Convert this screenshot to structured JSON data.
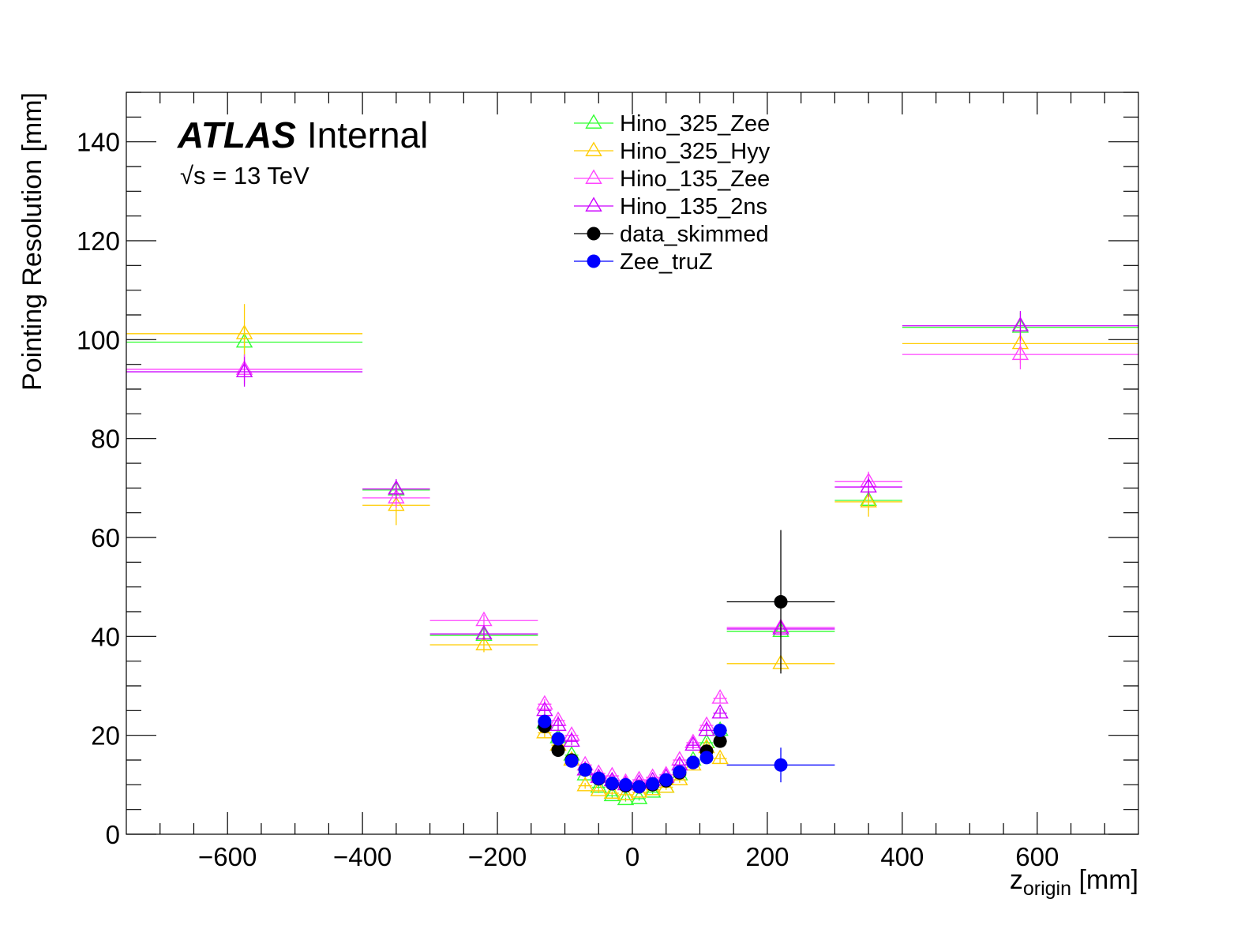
{
  "chart_data": {
    "type": "scatter",
    "xlabel": "z",
    "xlabel_subscript": "origin",
    "xlabel_unit": "[mm]",
    "ylabel": "Pointing Resolution [mm]",
    "xlim": [
      -750,
      750
    ],
    "ylim": [
      0,
      150
    ],
    "x_ticks": [
      "−600",
      "−400",
      "−200",
      "0",
      "200",
      "400",
      "600"
    ],
    "y_ticks": [
      "0",
      "20",
      "40",
      "60",
      "80",
      "100",
      "120",
      "140"
    ],
    "x_tick_values": [
      -600,
      -400,
      -200,
      0,
      200,
      400,
      600
    ],
    "y_tick_values": [
      0,
      20,
      40,
      60,
      80,
      100,
      120,
      140
    ],
    "annotation": {
      "experiment": "ATLAS",
      "status": "Internal",
      "energy": "√s = 13 TeV"
    },
    "legend_position": "top-center",
    "series": [
      {
        "name": "Hino_325_Zee",
        "color": "#33ff33",
        "marker": "open-triangle",
        "points": [
          {
            "x": -575,
            "y": 99.5,
            "xerr": 175,
            "yerr": 3
          },
          {
            "x": -350,
            "y": 69.6,
            "xerr": 50,
            "yerr": 2
          },
          {
            "x": -220,
            "y": 40.2,
            "xerr": 80,
            "yerr": 1.2
          },
          {
            "x": -130,
            "y": 22.5,
            "xerr": 10,
            "yerr": 1
          },
          {
            "x": -110,
            "y": 19.5,
            "xerr": 10,
            "yerr": 1
          },
          {
            "x": -90,
            "y": 16.0,
            "xerr": 10,
            "yerr": 0.8
          },
          {
            "x": -70,
            "y": 12.0,
            "xerr": 10,
            "yerr": 0.6
          },
          {
            "x": -50,
            "y": 9.5,
            "xerr": 10,
            "yerr": 0.5
          },
          {
            "x": -30,
            "y": 7.8,
            "xerr": 10,
            "yerr": 0.4
          },
          {
            "x": -10,
            "y": 7.0,
            "xerr": 10,
            "yerr": 0.4
          },
          {
            "x": 10,
            "y": 7.2,
            "xerr": 10,
            "yerr": 0.4
          },
          {
            "x": 30,
            "y": 8.5,
            "xerr": 10,
            "yerr": 0.4
          },
          {
            "x": 50,
            "y": 9.5,
            "xerr": 10,
            "yerr": 0.5
          },
          {
            "x": 70,
            "y": 12.0,
            "xerr": 10,
            "yerr": 0.6
          },
          {
            "x": 90,
            "y": 15.0,
            "xerr": 10,
            "yerr": 0.8
          },
          {
            "x": 110,
            "y": 18.5,
            "xerr": 10,
            "yerr": 1
          },
          {
            "x": 130,
            "y": 21.0,
            "xerr": 10,
            "yerr": 1
          },
          {
            "x": 220,
            "y": 41.0,
            "xerr": 80,
            "yerr": 1.5
          },
          {
            "x": 350,
            "y": 67.5,
            "xerr": 50,
            "yerr": 2
          },
          {
            "x": 575,
            "y": 102.5,
            "xerr": 175,
            "yerr": 3
          }
        ]
      },
      {
        "name": "Hino_325_Hyy",
        "color": "#ffcc00",
        "marker": "open-triangle",
        "points": [
          {
            "x": -575,
            "y": 101.2,
            "xerr": 175,
            "yerr": 6
          },
          {
            "x": -350,
            "y": 66.5,
            "xerr": 50,
            "yerr": 4
          },
          {
            "x": -220,
            "y": 38.3,
            "xerr": 80,
            "yerr": 1.5
          },
          {
            "x": -130,
            "y": 20.5,
            "xerr": 10,
            "yerr": 1
          },
          {
            "x": -110,
            "y": 18.0,
            "xerr": 10,
            "yerr": 1
          },
          {
            "x": -90,
            "y": 15.0,
            "xerr": 10,
            "yerr": 0.8
          },
          {
            "x": -70,
            "y": 9.8,
            "xerr": 10,
            "yerr": 0.6
          },
          {
            "x": -50,
            "y": 8.8,
            "xerr": 10,
            "yerr": 0.5
          },
          {
            "x": -30,
            "y": 8.3,
            "xerr": 10,
            "yerr": 0.4
          },
          {
            "x": -10,
            "y": 8.0,
            "xerr": 10,
            "yerr": 0.4
          },
          {
            "x": 10,
            "y": 8.5,
            "xerr": 10,
            "yerr": 0.4
          },
          {
            "x": 30,
            "y": 9.0,
            "xerr": 10,
            "yerr": 0.4
          },
          {
            "x": 50,
            "y": 9.5,
            "xerr": 10,
            "yerr": 0.5
          },
          {
            "x": 70,
            "y": 11.0,
            "xerr": 10,
            "yerr": 0.6
          },
          {
            "x": 90,
            "y": 14.0,
            "xerr": 10,
            "yerr": 0.8
          },
          {
            "x": 110,
            "y": 17.5,
            "xerr": 10,
            "yerr": 1
          },
          {
            "x": 130,
            "y": 15.3,
            "xerr": 10,
            "yerr": 1
          },
          {
            "x": 220,
            "y": 34.5,
            "xerr": 80,
            "yerr": 1.5
          },
          {
            "x": 350,
            "y": 67.2,
            "xerr": 50,
            "yerr": 3
          },
          {
            "x": 575,
            "y": 99.2,
            "xerr": 175,
            "yerr": 4
          }
        ]
      },
      {
        "name": "Hino_135_Zee",
        "color": "#ff44ff",
        "marker": "open-triangle",
        "points": [
          {
            "x": -575,
            "y": 94.0,
            "xerr": 175,
            "yerr": 3
          },
          {
            "x": -350,
            "y": 68.0,
            "xerr": 50,
            "yerr": 2
          },
          {
            "x": -220,
            "y": 43.2,
            "xerr": 80,
            "yerr": 1.2
          },
          {
            "x": -130,
            "y": 26.3,
            "xerr": 10,
            "yerr": 1
          },
          {
            "x": -110,
            "y": 23.0,
            "xerr": 10,
            "yerr": 1
          },
          {
            "x": -90,
            "y": 20.0,
            "xerr": 10,
            "yerr": 0.8
          },
          {
            "x": -70,
            "y": 14.0,
            "xerr": 10,
            "yerr": 0.6
          },
          {
            "x": -50,
            "y": 12.3,
            "xerr": 10,
            "yerr": 0.5
          },
          {
            "x": -30,
            "y": 11.8,
            "xerr": 10,
            "yerr": 0.4
          },
          {
            "x": -10,
            "y": 10.5,
            "xerr": 10,
            "yerr": 0.4
          },
          {
            "x": 10,
            "y": 11.0,
            "xerr": 10,
            "yerr": 0.4
          },
          {
            "x": 30,
            "y": 11.5,
            "xerr": 10,
            "yerr": 0.4
          },
          {
            "x": 50,
            "y": 12.0,
            "xerr": 10,
            "yerr": 0.5
          },
          {
            "x": 70,
            "y": 15.0,
            "xerr": 10,
            "yerr": 0.6
          },
          {
            "x": 90,
            "y": 18.5,
            "xerr": 10,
            "yerr": 0.8
          },
          {
            "x": 110,
            "y": 22.0,
            "xerr": 10,
            "yerr": 1
          },
          {
            "x": 130,
            "y": 27.5,
            "xerr": 10,
            "yerr": 1
          },
          {
            "x": 220,
            "y": 41.8,
            "xerr": 80,
            "yerr": 1.5
          },
          {
            "x": 350,
            "y": 71.3,
            "xerr": 50,
            "yerr": 2
          },
          {
            "x": 575,
            "y": 97.0,
            "xerr": 175,
            "yerr": 3
          }
        ]
      },
      {
        "name": "Hino_135_2ns",
        "color": "#cc00ff",
        "marker": "open-triangle",
        "points": [
          {
            "x": -575,
            "y": 93.5,
            "xerr": 175,
            "yerr": 3
          },
          {
            "x": -350,
            "y": 69.8,
            "xerr": 50,
            "yerr": 2
          },
          {
            "x": -220,
            "y": 40.5,
            "xerr": 80,
            "yerr": 1.2
          },
          {
            "x": -130,
            "y": 25.0,
            "xerr": 10,
            "yerr": 1
          },
          {
            "x": -110,
            "y": 22.0,
            "xerr": 10,
            "yerr": 1
          },
          {
            "x": -90,
            "y": 18.8,
            "xerr": 10,
            "yerr": 0.8
          },
          {
            "x": -70,
            "y": 13.0,
            "xerr": 10,
            "yerr": 0.6
          },
          {
            "x": -50,
            "y": 11.5,
            "xerr": 10,
            "yerr": 0.5
          },
          {
            "x": -30,
            "y": 10.8,
            "xerr": 10,
            "yerr": 0.4
          },
          {
            "x": -10,
            "y": 10.0,
            "xerr": 10,
            "yerr": 0.4
          },
          {
            "x": 10,
            "y": 10.3,
            "xerr": 10,
            "yerr": 0.4
          },
          {
            "x": 30,
            "y": 10.8,
            "xerr": 10,
            "yerr": 0.4
          },
          {
            "x": 50,
            "y": 11.5,
            "xerr": 10,
            "yerr": 0.5
          },
          {
            "x": 70,
            "y": 14.0,
            "xerr": 10,
            "yerr": 0.6
          },
          {
            "x": 90,
            "y": 18.0,
            "xerr": 10,
            "yerr": 0.8
          },
          {
            "x": 110,
            "y": 21.0,
            "xerr": 10,
            "yerr": 1
          },
          {
            "x": 130,
            "y": 24.5,
            "xerr": 10,
            "yerr": 1
          },
          {
            "x": 220,
            "y": 41.5,
            "xerr": 80,
            "yerr": 1.5
          },
          {
            "x": 350,
            "y": 70.2,
            "xerr": 50,
            "yerr": 2
          },
          {
            "x": 575,
            "y": 102.8,
            "xerr": 175,
            "yerr": 3
          }
        ]
      },
      {
        "name": "data_skimmed",
        "color": "#000000",
        "marker": "filled-circle",
        "points": [
          {
            "x": -130,
            "y": 21.8,
            "xerr": 10,
            "yerr": 0.8
          },
          {
            "x": -110,
            "y": 17.0,
            "xerr": 10,
            "yerr": 0.6
          },
          {
            "x": -90,
            "y": 15.0,
            "xerr": 10,
            "yerr": 0.5
          },
          {
            "x": -70,
            "y": 13.0,
            "xerr": 10,
            "yerr": 0.4
          },
          {
            "x": -50,
            "y": 11.2,
            "xerr": 10,
            "yerr": 0.3
          },
          {
            "x": -30,
            "y": 10.2,
            "xerr": 10,
            "yerr": 0.3
          },
          {
            "x": -10,
            "y": 9.8,
            "xerr": 10,
            "yerr": 0.3
          },
          {
            "x": 10,
            "y": 9.6,
            "xerr": 10,
            "yerr": 0.3
          },
          {
            "x": 30,
            "y": 10.0,
            "xerr": 10,
            "yerr": 0.3
          },
          {
            "x": 50,
            "y": 10.8,
            "xerr": 10,
            "yerr": 0.3
          },
          {
            "x": 70,
            "y": 12.4,
            "xerr": 10,
            "yerr": 0.4
          },
          {
            "x": 90,
            "y": 14.5,
            "xerr": 10,
            "yerr": 0.5
          },
          {
            "x": 110,
            "y": 16.8,
            "xerr": 10,
            "yerr": 0.6
          },
          {
            "x": 130,
            "y": 18.8,
            "xerr": 10,
            "yerr": 0.8
          },
          {
            "x": 220,
            "y": 47.0,
            "xerr": 80,
            "yerr": 14.5
          }
        ]
      },
      {
        "name": "Zee_truZ",
        "color": "#0000ff",
        "marker": "filled-circle",
        "points": [
          {
            "x": -130,
            "y": 22.8,
            "xerr": 10,
            "yerr": 0.8
          },
          {
            "x": -110,
            "y": 19.3,
            "xerr": 10,
            "yerr": 0.6
          },
          {
            "x": -90,
            "y": 14.8,
            "xerr": 10,
            "yerr": 0.5
          },
          {
            "x": -70,
            "y": 13.0,
            "xerr": 10,
            "yerr": 0.4
          },
          {
            "x": -50,
            "y": 11.3,
            "xerr": 10,
            "yerr": 0.3
          },
          {
            "x": -30,
            "y": 10.3,
            "xerr": 10,
            "yerr": 0.3
          },
          {
            "x": -10,
            "y": 10.0,
            "xerr": 10,
            "yerr": 0.3
          },
          {
            "x": 10,
            "y": 9.6,
            "xerr": 10,
            "yerr": 0.3
          },
          {
            "x": 30,
            "y": 10.2,
            "xerr": 10,
            "yerr": 0.3
          },
          {
            "x": 50,
            "y": 11.0,
            "xerr": 10,
            "yerr": 0.3
          },
          {
            "x": 70,
            "y": 12.6,
            "xerr": 10,
            "yerr": 0.4
          },
          {
            "x": 90,
            "y": 14.5,
            "xerr": 10,
            "yerr": 0.5
          },
          {
            "x": 110,
            "y": 15.5,
            "xerr": 10,
            "yerr": 0.6
          },
          {
            "x": 130,
            "y": 21.0,
            "xerr": 10,
            "yerr": 0.8
          },
          {
            "x": 220,
            "y": 14.0,
            "xerr": 80,
            "yerr": 3.5
          }
        ]
      }
    ]
  }
}
